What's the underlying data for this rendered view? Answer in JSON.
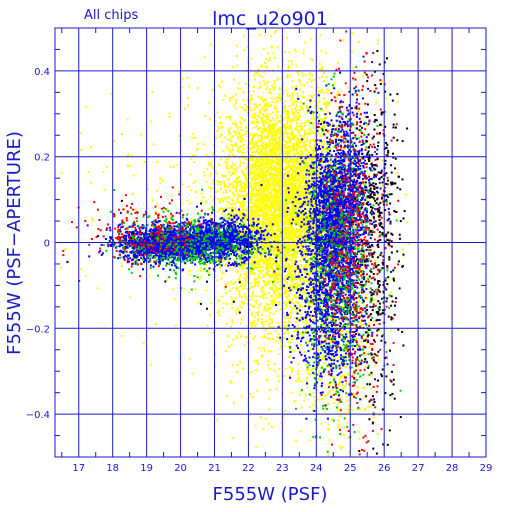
{
  "chart_data": {
    "type": "scatter",
    "title": "lmc_u2o901",
    "subtitle": "All chips",
    "xlabel": "F555W (PSF)",
    "ylabel": "F555W (PSF−APERTURE)",
    "xlim": [
      16.3,
      29.0
    ],
    "ylim": [
      -0.5,
      0.5
    ],
    "x_ticks": [
      "17",
      "18",
      "19",
      "20",
      "21",
      "22",
      "23",
      "24",
      "25",
      "26",
      "27",
      "28",
      "29"
    ],
    "y_ticks": [
      "0.4",
      "0.2",
      "0",
      "−0.2",
      "−0.4"
    ],
    "y_tick_values": [
      0.4,
      0.2,
      0,
      -0.2,
      -0.4
    ],
    "grid": true,
    "colors": {
      "axis": "#1a1acc",
      "yellow": "#ffff00",
      "blue": "#0000ff",
      "green": "#00cc00",
      "red": "#ff0000",
      "black": "#000000"
    },
    "series": [
      {
        "color": "yellow",
        "clusters": [
          {
            "x_mean": 22.9,
            "x_sd": 0.85,
            "y_mean": 0.09,
            "y_sd": 0.13,
            "n": 5200
          },
          {
            "x_mean": 23.3,
            "x_sd": 1.3,
            "y_mean": 0.05,
            "y_sd": 0.25,
            "n": 900
          },
          {
            "x_mean": 24.6,
            "x_sd": 0.5,
            "y_mean": -0.2,
            "y_sd": 0.14,
            "n": 450
          },
          {
            "x_mean": 19.5,
            "x_sd": 1.4,
            "y_mean": 0.08,
            "y_sd": 0.15,
            "n": 120
          }
        ]
      },
      {
        "color": "blue",
        "clusters": [
          {
            "x_mean": 19.6,
            "x_sd": 0.7,
            "y_mean": 0.0,
            "y_sd": 0.02,
            "n": 1700
          },
          {
            "x_mean": 21.2,
            "x_sd": 0.6,
            "y_mean": 0.01,
            "y_sd": 0.025,
            "n": 900
          },
          {
            "x_mean": 24.5,
            "x_sd": 0.45,
            "y_mean": 0.05,
            "y_sd": 0.09,
            "n": 1900
          },
          {
            "x_mean": 24.4,
            "x_sd": 0.55,
            "y_mean": -0.16,
            "y_sd": 0.09,
            "n": 800
          },
          {
            "x_mean": 24.9,
            "x_sd": 0.45,
            "y_mean": 0.15,
            "y_sd": 0.1,
            "n": 550
          }
        ]
      },
      {
        "color": "green",
        "clusters": [
          {
            "x_mean": 20.2,
            "x_sd": 1.1,
            "y_mean": 0.0,
            "y_sd": 0.035,
            "n": 450
          },
          {
            "x_mean": 24.7,
            "x_sd": 0.55,
            "y_mean": -0.05,
            "y_sd": 0.17,
            "n": 650
          }
        ]
      },
      {
        "color": "red",
        "clusters": [
          {
            "x_mean": 19.0,
            "x_sd": 0.9,
            "y_mean": 0.02,
            "y_sd": 0.04,
            "n": 220
          },
          {
            "x_mean": 25.1,
            "x_sd": 0.5,
            "y_mean": 0.0,
            "y_sd": 0.2,
            "n": 600
          }
        ]
      },
      {
        "color": "black",
        "clusters": [
          {
            "x_mean": 25.8,
            "x_sd": 0.35,
            "y_mean": 0.0,
            "y_sd": 0.2,
            "n": 380
          },
          {
            "x_mean": 21.0,
            "x_sd": 2.0,
            "y_mean": 0.0,
            "y_sd": 0.08,
            "n": 25
          }
        ]
      }
    ]
  }
}
